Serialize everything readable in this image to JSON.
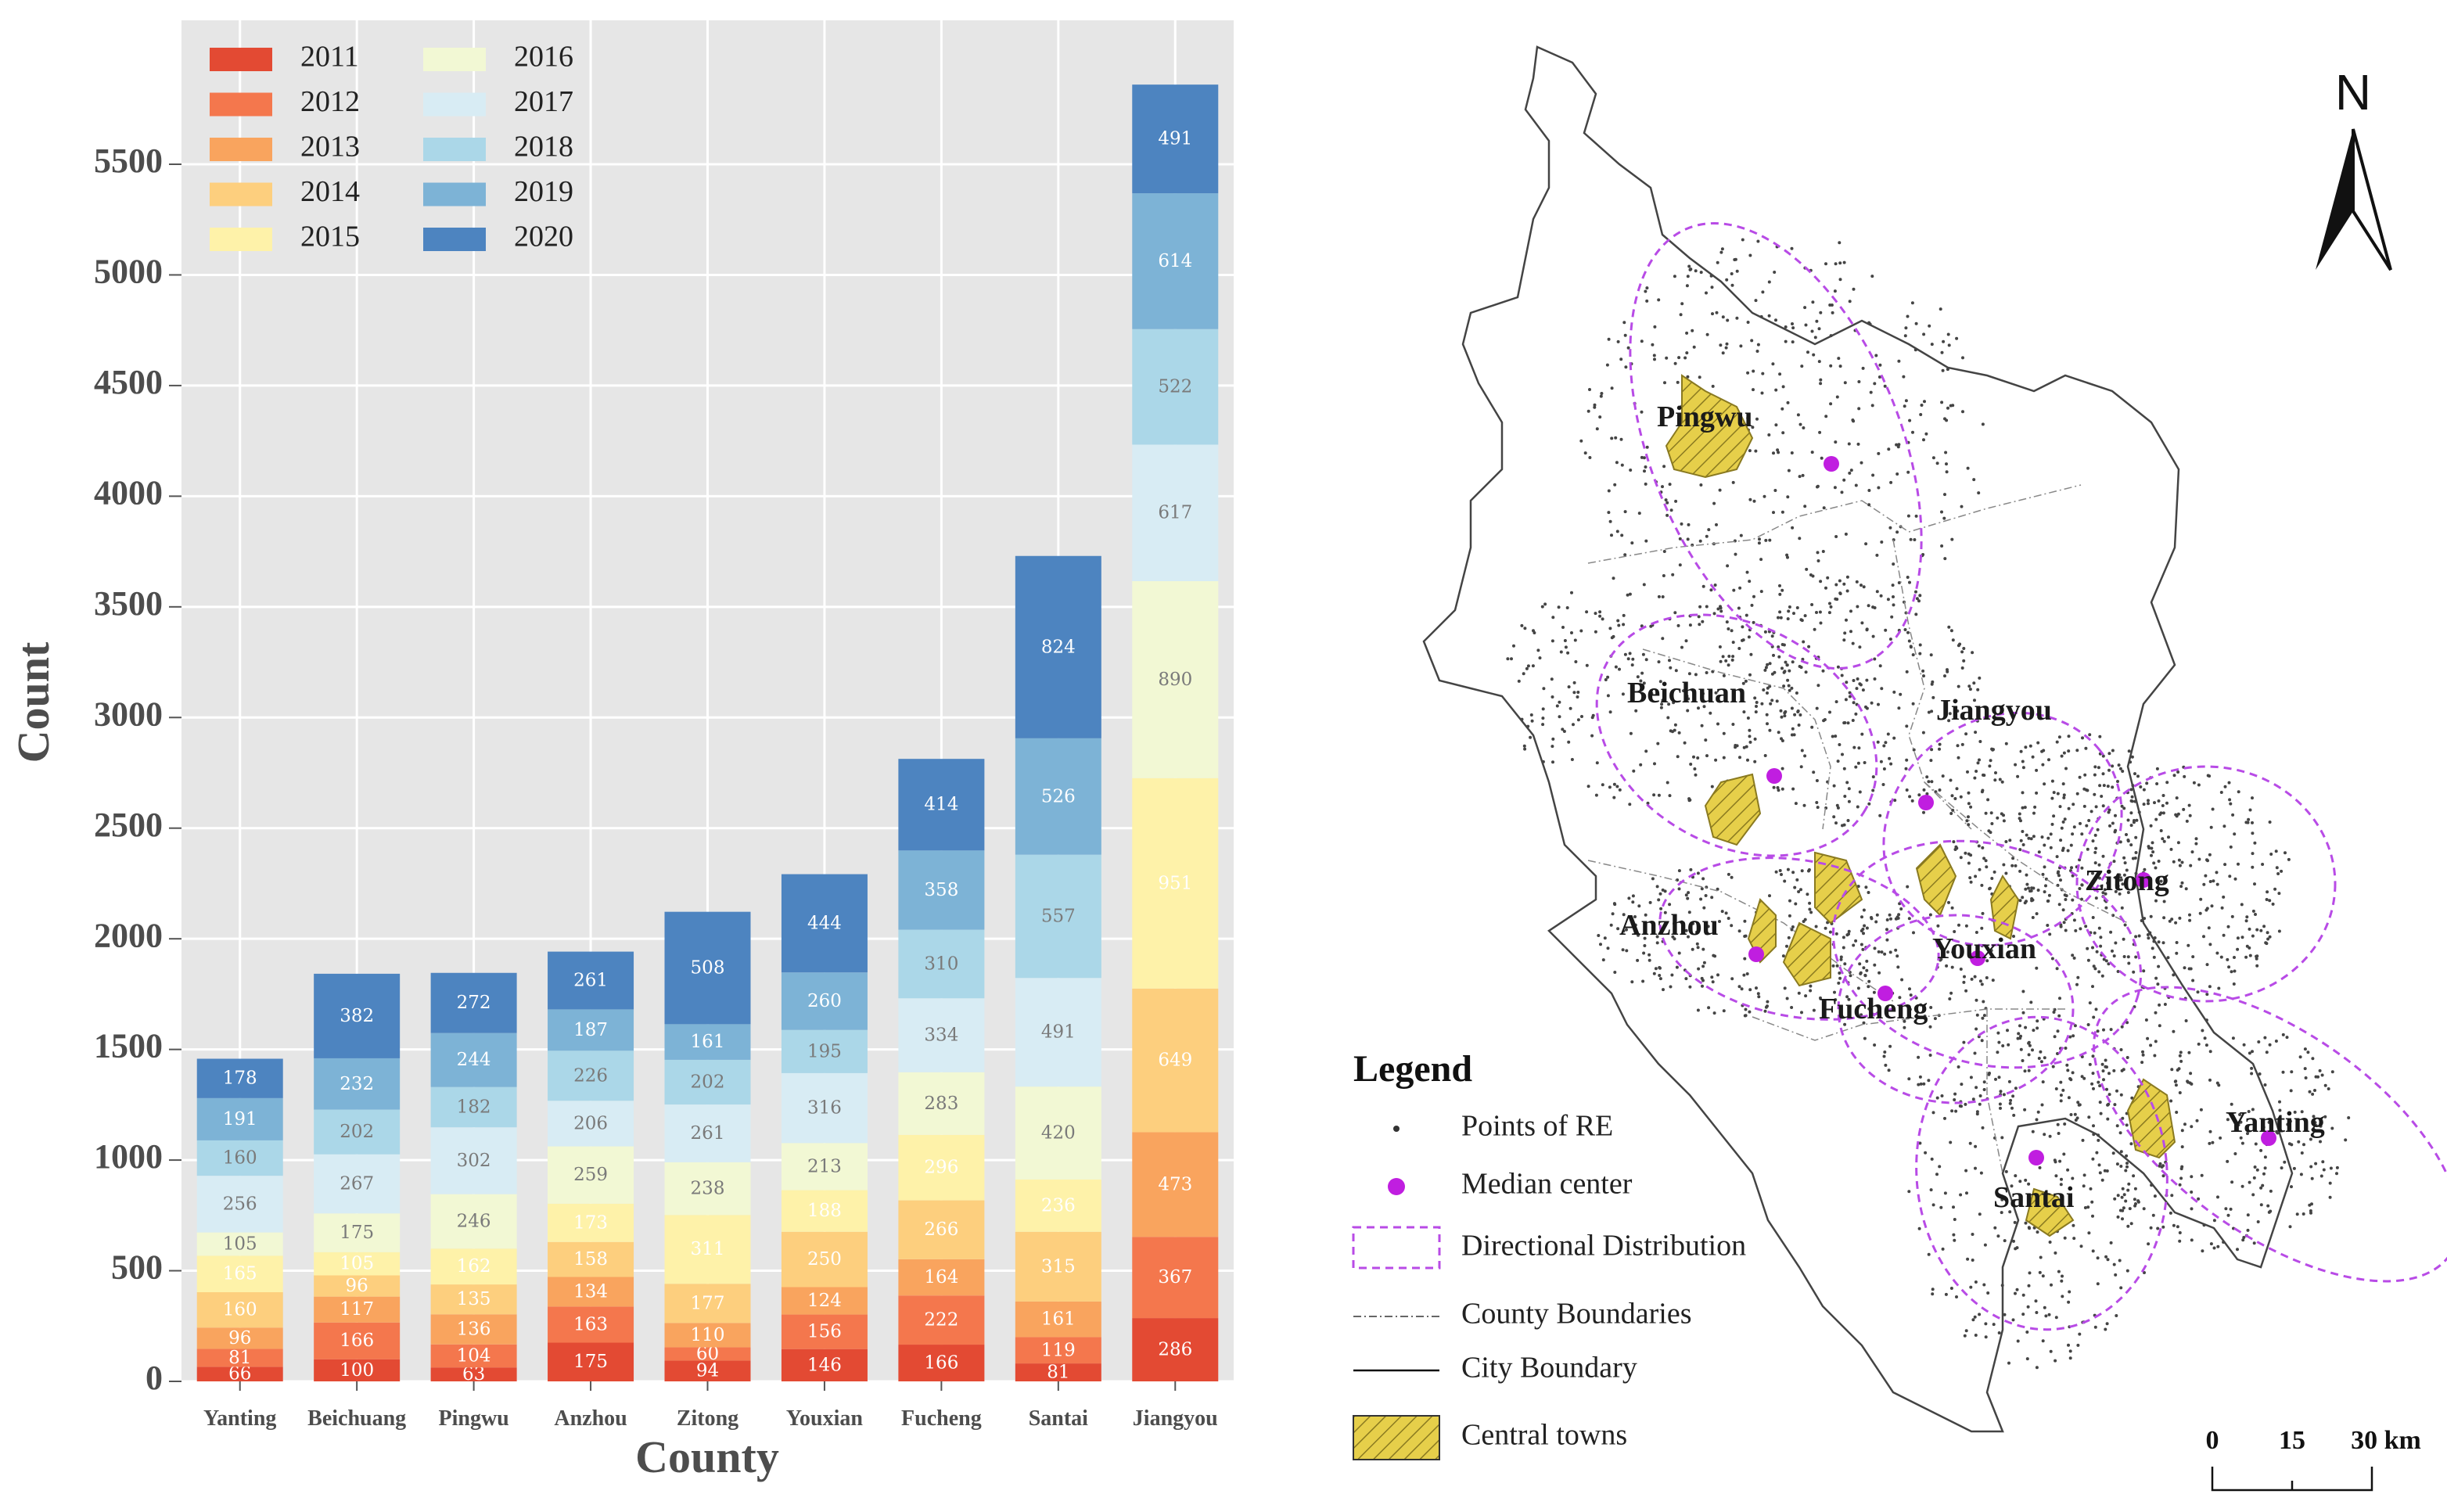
{
  "chart_data": {
    "type": "bar",
    "stacked": true,
    "title": "",
    "xlabel": "County",
    "ylabel": "Count",
    "ylim": [
      0,
      6100
    ],
    "yticks": [
      0,
      500,
      1000,
      1500,
      2000,
      2500,
      3000,
      3500,
      4000,
      4500,
      5000,
      5500
    ],
    "grid": true,
    "legend_position": "top-left",
    "categories": [
      "Yanting",
      "Beichuang",
      "Pingwu",
      "Anzhou",
      "Zitong",
      "Youxian",
      "Fucheng",
      "Santai",
      "Jiangyou"
    ],
    "series": [
      {
        "name": "2011",
        "color": "#e34a33",
        "values": [
          66,
          100,
          63,
          175,
          94,
          146,
          166,
          81,
          286
        ]
      },
      {
        "name": "2012",
        "color": "#f4774d",
        "values": [
          81,
          166,
          104,
          163,
          60,
          156,
          222,
          119,
          367
        ]
      },
      {
        "name": "2013",
        "color": "#f9a45e",
        "values": [
          96,
          117,
          136,
          134,
          110,
          124,
          164,
          161,
          473
        ]
      },
      {
        "name": "2014",
        "color": "#fdcf7e",
        "values": [
          160,
          96,
          135,
          158,
          177,
          250,
          266,
          315,
          649
        ]
      },
      {
        "name": "2015",
        "color": "#fef2a9",
        "values": [
          165,
          105,
          162,
          173,
          311,
          188,
          296,
          236,
          951
        ]
      },
      {
        "name": "2016",
        "color": "#f2f8d4",
        "values": [
          105,
          175,
          246,
          259,
          238,
          213,
          283,
          420,
          890
        ]
      },
      {
        "name": "2017",
        "color": "#d8ecf4",
        "values": [
          256,
          267,
          302,
          206,
          261,
          316,
          334,
          491,
          617
        ]
      },
      {
        "name": "2018",
        "color": "#abd7e8",
        "values": [
          160,
          202,
          182,
          226,
          202,
          195,
          310,
          557,
          522
        ]
      },
      {
        "name": "2019",
        "color": "#7db3d6",
        "values": [
          191,
          232,
          244,
          187,
          161,
          260,
          358,
          526,
          614
        ]
      },
      {
        "name": "2020",
        "color": "#4d84c0",
        "values": [
          178,
          382,
          272,
          261,
          508,
          444,
          414,
          824,
          491
        ]
      }
    ]
  },
  "map": {
    "north_label": "N",
    "town_labels": [
      "Pingwu",
      "Beichuan",
      "Jiangyou",
      "Zitong",
      "Anzhou",
      "Youxian",
      "Fucheng",
      "Yanting",
      "Santai"
    ],
    "legend_title": "Legend",
    "legend_items": [
      {
        "label": "Points of RE",
        "icon": "small-dot-icon"
      },
      {
        "label": "Median center",
        "icon": "magenta-dot-icon"
      },
      {
        "label": "Directional Distribution",
        "icon": "dashed-box-icon"
      },
      {
        "label": "County Boundaries",
        "icon": "dash-dot-line-icon"
      },
      {
        "label": "City Boundary",
        "icon": "solid-line-icon"
      },
      {
        "label": "Central towns",
        "icon": "hatched-box-icon"
      }
    ],
    "scale": {
      "labels": [
        "0",
        "15",
        "30 km"
      ]
    },
    "colors": {
      "ellipse": "#b84be6",
      "median": "#c01ee0",
      "town_fill": "#e6cf4a"
    }
  }
}
